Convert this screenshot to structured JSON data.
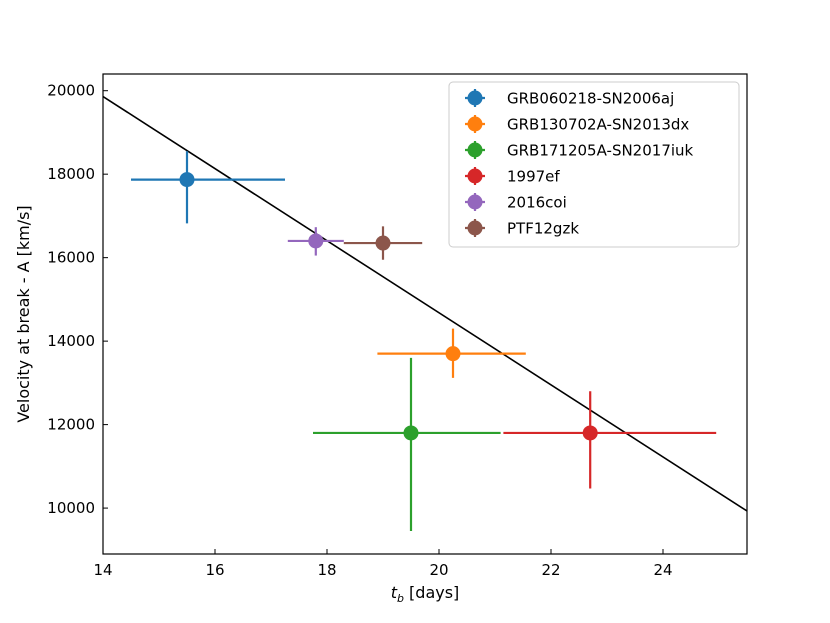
{
  "chart_data": {
    "type": "scatter",
    "xlabel_main": "t",
    "xlabel_sub": "b",
    "xlabel_rest": " [days]",
    "ylabel": "Velocity at break - A [km/s]",
    "xlim": [
      14,
      25.5
    ],
    "ylim": [
      8900,
      20400
    ],
    "xticks": [
      14,
      16,
      18,
      20,
      22,
      24
    ],
    "yticks": [
      10000,
      12000,
      14000,
      16000,
      18000,
      20000
    ],
    "grid": false,
    "legend_position": "top-right",
    "series": [
      {
        "name": "GRB060218-SN2006aj",
        "color": "#1f77b4",
        "x": 15.5,
        "y": 17870,
        "xerr": [
          1.0,
          1.75
        ],
        "yerr": [
          1050,
          680
        ]
      },
      {
        "name": "GRB130702A-SN2013dx",
        "color": "#ff7f0e",
        "x": 20.25,
        "y": 13700,
        "xerr": [
          1.35,
          1.3
        ],
        "yerr": [
          580,
          600
        ]
      },
      {
        "name": "GRB171205A-SN2017iuk",
        "color": "#2ca02c",
        "x": 19.5,
        "y": 11800,
        "xerr": [
          1.75,
          1.6
        ],
        "yerr": [
          2350,
          1800
        ]
      },
      {
        "name": "1997ef",
        "color": "#d62728",
        "x": 22.7,
        "y": 11800,
        "xerr": [
          1.55,
          2.25
        ],
        "yerr": [
          1330,
          1000
        ]
      },
      {
        "name": "2016coi",
        "color": "#9467bd",
        "x": 17.8,
        "y": 16400,
        "xerr": [
          0.5,
          0.5
        ],
        "yerr": [
          350,
          330
        ]
      },
      {
        "name": "PTF12gzk",
        "color": "#8c564b",
        "x": 19.0,
        "y": 16350,
        "xerr": [
          0.7,
          0.7
        ],
        "yerr": [
          400,
          400
        ]
      }
    ],
    "fit_line": {
      "color": "#000000",
      "x": [
        14,
        25.5
      ],
      "y": [
        19860,
        9930
      ]
    }
  }
}
